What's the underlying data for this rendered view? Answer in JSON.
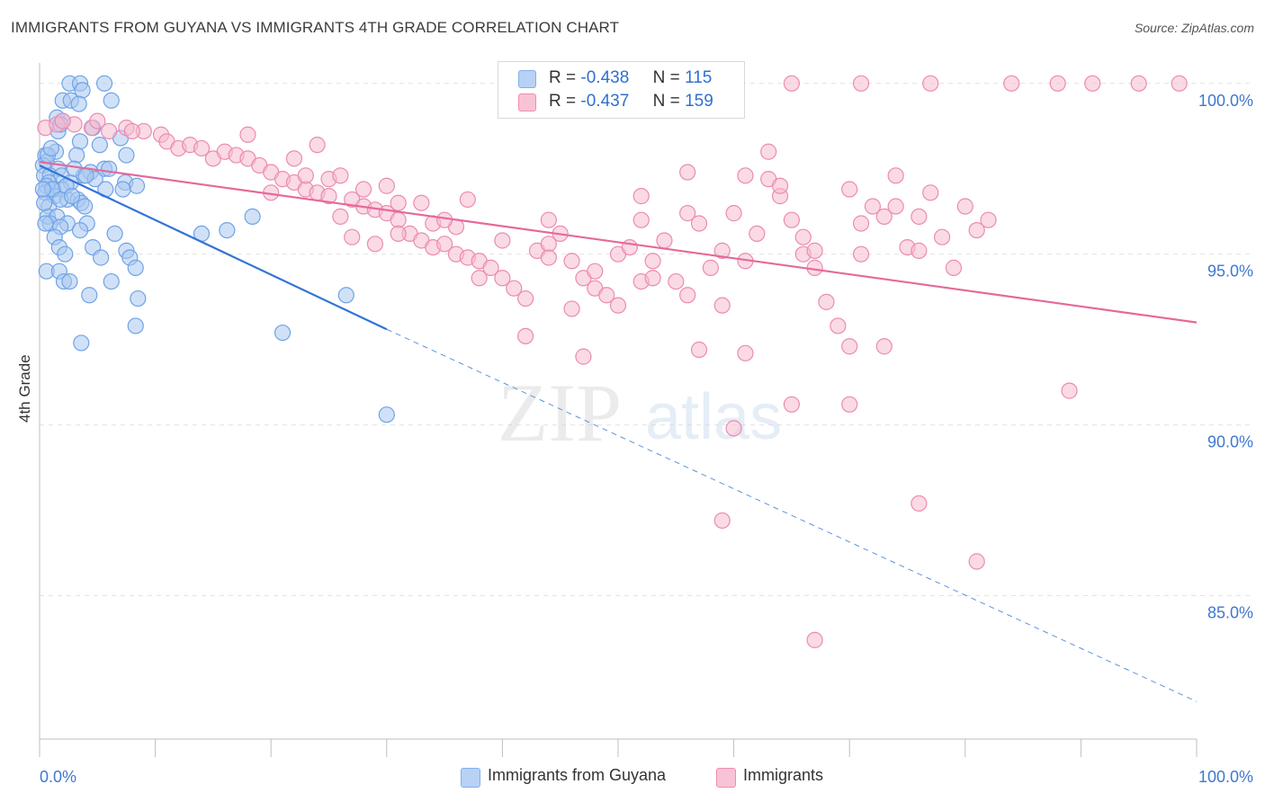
{
  "title": "IMMIGRANTS FROM GUYANA VS IMMIGRANTS 4TH GRADE CORRELATION CHART",
  "source": "Source: ZipAtlas.com",
  "watermark": {
    "zip": "ZIP",
    "atlas": "atlas"
  },
  "legend": {
    "r_label": "R =",
    "n_label": "N =",
    "rows": [
      {
        "name": "Immigrants from Guyana",
        "r": "-0.438",
        "n": "115",
        "color": "#7fb0ea",
        "fill": "#b7d2f5"
      },
      {
        "name": "Immigrants",
        "r": "-0.437",
        "n": "159",
        "color": "#ee8db0",
        "fill": "#f8c3d6"
      }
    ]
  },
  "chart_data": {
    "type": "scatter",
    "title": "IMMIGRANTS FROM GUYANA VS IMMIGRANTS 4TH GRADE CORRELATION CHART",
    "xlabel": "",
    "ylabel": "4th Grade",
    "xlim": [
      0,
      100
    ],
    "ylim": [
      80.8,
      100.6
    ],
    "x_tick_labels": [
      "0.0%",
      "100.0%"
    ],
    "y_ticks": [
      85,
      90,
      95,
      100
    ],
    "y_tick_labels": [
      "85.0%",
      "90.0%",
      "95.0%",
      "100.0%"
    ],
    "grid": true,
    "legend_position": "top-center",
    "series": [
      {
        "name": "Immigrants from Guyana",
        "color": "#4f8fe0",
        "trend": {
          "x0": 0,
          "y0": 97.6,
          "x1": 30,
          "y1": 92.8,
          "dash_to_x": 100,
          "dash_to_y": 81.9
        },
        "points": [
          [
            2.6,
            100
          ],
          [
            3.5,
            100
          ],
          [
            5.6,
            100
          ],
          [
            3.7,
            99.8
          ],
          [
            2.0,
            99.5
          ],
          [
            2.7,
            99.5
          ],
          [
            3.4,
            99.4
          ],
          [
            6.2,
            99.5
          ],
          [
            1.5,
            99.0
          ],
          [
            2.0,
            98.9
          ],
          [
            1.6,
            98.6
          ],
          [
            1.8,
            98.8
          ],
          [
            4.6,
            98.7
          ],
          [
            7.0,
            98.4
          ],
          [
            3.5,
            98.3
          ],
          [
            5.2,
            98.2
          ],
          [
            1.4,
            98.0
          ],
          [
            0.5,
            97.9
          ],
          [
            0.6,
            97.7
          ],
          [
            3.2,
            97.9
          ],
          [
            0.3,
            97.6
          ],
          [
            1.6,
            97.5
          ],
          [
            4.4,
            97.4
          ],
          [
            5.6,
            97.5
          ],
          [
            7.5,
            97.9
          ],
          [
            0.4,
            97.3
          ],
          [
            0.9,
            97.3
          ],
          [
            1.9,
            97.3
          ],
          [
            3.8,
            97.3
          ],
          [
            4.8,
            97.2
          ],
          [
            0.8,
            97.1
          ],
          [
            2.7,
            97.1
          ],
          [
            0.6,
            97.0
          ],
          [
            1.2,
            96.9
          ],
          [
            1.9,
            96.9
          ],
          [
            5.7,
            96.9
          ],
          [
            7.4,
            97.1
          ],
          [
            8.4,
            97.0
          ],
          [
            0.5,
            96.8
          ],
          [
            1.3,
            96.7
          ],
          [
            2.4,
            96.6
          ],
          [
            3.3,
            96.6
          ],
          [
            3.6,
            96.5
          ],
          [
            7.2,
            96.9
          ],
          [
            0.8,
            96.4
          ],
          [
            3.9,
            96.4
          ],
          [
            0.7,
            96.1
          ],
          [
            1.5,
            96.1
          ],
          [
            0.9,
            95.9
          ],
          [
            2.4,
            95.9
          ],
          [
            4.1,
            95.9
          ],
          [
            1.8,
            95.8
          ],
          [
            3.5,
            95.7
          ],
          [
            6.5,
            95.6
          ],
          [
            1.3,
            95.5
          ],
          [
            14.0,
            95.6
          ],
          [
            16.2,
            95.7
          ],
          [
            18.4,
            96.1
          ],
          [
            1.7,
            95.2
          ],
          [
            4.6,
            95.2
          ],
          [
            7.5,
            95.1
          ],
          [
            2.2,
            95.0
          ],
          [
            5.3,
            94.9
          ],
          [
            7.8,
            94.9
          ],
          [
            0.6,
            94.5
          ],
          [
            1.7,
            94.5
          ],
          [
            8.3,
            94.6
          ],
          [
            2.1,
            94.2
          ],
          [
            2.6,
            94.2
          ],
          [
            6.2,
            94.2
          ],
          [
            4.3,
            93.8
          ],
          [
            8.5,
            93.7
          ],
          [
            26.5,
            93.8
          ],
          [
            8.3,
            92.9
          ],
          [
            21.0,
            92.7
          ],
          [
            3.6,
            92.4
          ],
          [
            30.0,
            90.3
          ],
          [
            0.4,
            96.5
          ],
          [
            1.1,
            96.9
          ],
          [
            2.3,
            97.0
          ],
          [
            0.7,
            97.9
          ],
          [
            1.0,
            98.1
          ],
          [
            3.0,
            97.5
          ],
          [
            4.0,
            97.3
          ],
          [
            6.0,
            97.5
          ],
          [
            0.3,
            96.9
          ],
          [
            1.8,
            96.6
          ],
          [
            2.8,
            96.7
          ],
          [
            0.5,
            95.9
          ]
        ]
      },
      {
        "name": "Immigrants",
        "color": "#e8739d",
        "trend": {
          "x0": 0,
          "y0": 97.7,
          "x1": 100,
          "y1": 93.0
        },
        "points": [
          [
            65,
            100
          ],
          [
            71,
            100
          ],
          [
            77,
            100
          ],
          [
            84,
            100
          ],
          [
            88,
            100
          ],
          [
            91,
            100
          ],
          [
            98.5,
            100
          ],
          [
            95,
            100
          ],
          [
            0.5,
            98.7
          ],
          [
            1.5,
            98.8
          ],
          [
            3,
            98.8
          ],
          [
            4.5,
            98.7
          ],
          [
            6,
            98.6
          ],
          [
            7.5,
            98.7
          ],
          [
            9,
            98.6
          ],
          [
            10.5,
            98.5
          ],
          [
            2,
            98.9
          ],
          [
            5,
            98.9
          ],
          [
            8,
            98.6
          ],
          [
            11,
            98.3
          ],
          [
            12,
            98.1
          ],
          [
            13,
            98.2
          ],
          [
            14,
            98.1
          ],
          [
            15,
            97.8
          ],
          [
            16,
            98.0
          ],
          [
            17,
            97.9
          ],
          [
            18,
            97.8
          ],
          [
            19,
            97.6
          ],
          [
            20,
            97.4
          ],
          [
            21,
            97.2
          ],
          [
            22,
            97.1
          ],
          [
            23,
            96.9
          ],
          [
            24,
            96.8
          ],
          [
            25,
            96.7
          ],
          [
            27,
            96.6
          ],
          [
            28,
            96.4
          ],
          [
            29,
            96.3
          ],
          [
            30,
            96.2
          ],
          [
            31,
            96.0
          ],
          [
            32,
            95.6
          ],
          [
            33,
            95.4
          ],
          [
            34,
            95.2
          ],
          [
            35,
            95.3
          ],
          [
            36,
            95.0
          ],
          [
            37,
            94.9
          ],
          [
            38,
            94.8
          ],
          [
            39,
            94.6
          ],
          [
            40,
            94.3
          ],
          [
            41,
            94.0
          ],
          [
            42,
            93.7
          ],
          [
            43,
            95.1
          ],
          [
            44,
            95.3
          ],
          [
            45,
            95.6
          ],
          [
            46,
            94.8
          ],
          [
            47,
            94.3
          ],
          [
            48,
            94.0
          ],
          [
            49,
            93.8
          ],
          [
            50,
            95.0
          ],
          [
            51,
            95.2
          ],
          [
            52,
            96.0
          ],
          [
            53,
            94.8
          ],
          [
            54,
            95.4
          ],
          [
            55,
            94.2
          ],
          [
            56,
            96.2
          ],
          [
            57,
            95.9
          ],
          [
            58,
            94.6
          ],
          [
            59,
            95.1
          ],
          [
            60,
            96.2
          ],
          [
            61,
            94.8
          ],
          [
            62,
            95.6
          ],
          [
            63,
            97.2
          ],
          [
            64,
            96.7
          ],
          [
            65,
            96.0
          ],
          [
            66,
            95.5
          ],
          [
            67,
            94.6
          ],
          [
            68,
            93.6
          ],
          [
            69,
            92.9
          ],
          [
            70,
            92.3
          ],
          [
            71,
            95.0
          ],
          [
            72,
            96.4
          ],
          [
            73,
            96.1
          ],
          [
            74,
            97.3
          ],
          [
            75,
            95.2
          ],
          [
            76,
            96.1
          ],
          [
            77,
            96.8
          ],
          [
            78,
            95.5
          ],
          [
            79,
            94.6
          ],
          [
            80,
            96.4
          ],
          [
            81,
            95.7
          ],
          [
            82,
            96.0
          ],
          [
            63,
            98.0
          ],
          [
            56,
            97.4
          ],
          [
            64,
            97.0
          ],
          [
            52,
            96.7
          ],
          [
            18,
            98.5
          ],
          [
            22,
            97.8
          ],
          [
            25,
            97.2
          ],
          [
            28,
            96.9
          ],
          [
            33,
            96.5
          ],
          [
            36,
            95.8
          ],
          [
            40,
            95.4
          ],
          [
            44,
            94.9
          ],
          [
            48,
            94.5
          ],
          [
            52,
            94.2
          ],
          [
            56,
            93.8
          ],
          [
            59,
            93.5
          ],
          [
            61,
            92.1
          ],
          [
            57,
            92.2
          ],
          [
            47,
            92.0
          ],
          [
            42,
            92.6
          ],
          [
            73,
            92.3
          ],
          [
            60,
            89.9
          ],
          [
            65,
            90.6
          ],
          [
            70,
            90.6
          ],
          [
            89,
            91.0
          ],
          [
            76,
            87.7
          ],
          [
            81,
            86.0
          ],
          [
            59,
            87.2
          ],
          [
            67,
            83.7
          ],
          [
            46,
            93.4
          ],
          [
            66,
            95.0
          ],
          [
            50,
            93.5
          ],
          [
            53,
            94.3
          ],
          [
            38,
            94.3
          ],
          [
            26,
            97.3
          ],
          [
            24,
            98.2
          ],
          [
            30,
            97.0
          ],
          [
            34,
            95.9
          ],
          [
            26,
            96.1
          ],
          [
            31,
            95.6
          ],
          [
            35,
            96.0
          ],
          [
            44,
            96.0
          ],
          [
            76,
            95.1
          ],
          [
            71,
            95.9
          ],
          [
            61,
            97.3
          ],
          [
            67,
            95.1
          ],
          [
            70,
            96.9
          ],
          [
            74,
            96.4
          ],
          [
            31,
            96.5
          ],
          [
            27,
            95.5
          ],
          [
            23,
            97.3
          ],
          [
            29,
            95.3
          ],
          [
            20,
            96.8
          ],
          [
            37,
            96.6
          ]
        ]
      }
    ]
  }
}
